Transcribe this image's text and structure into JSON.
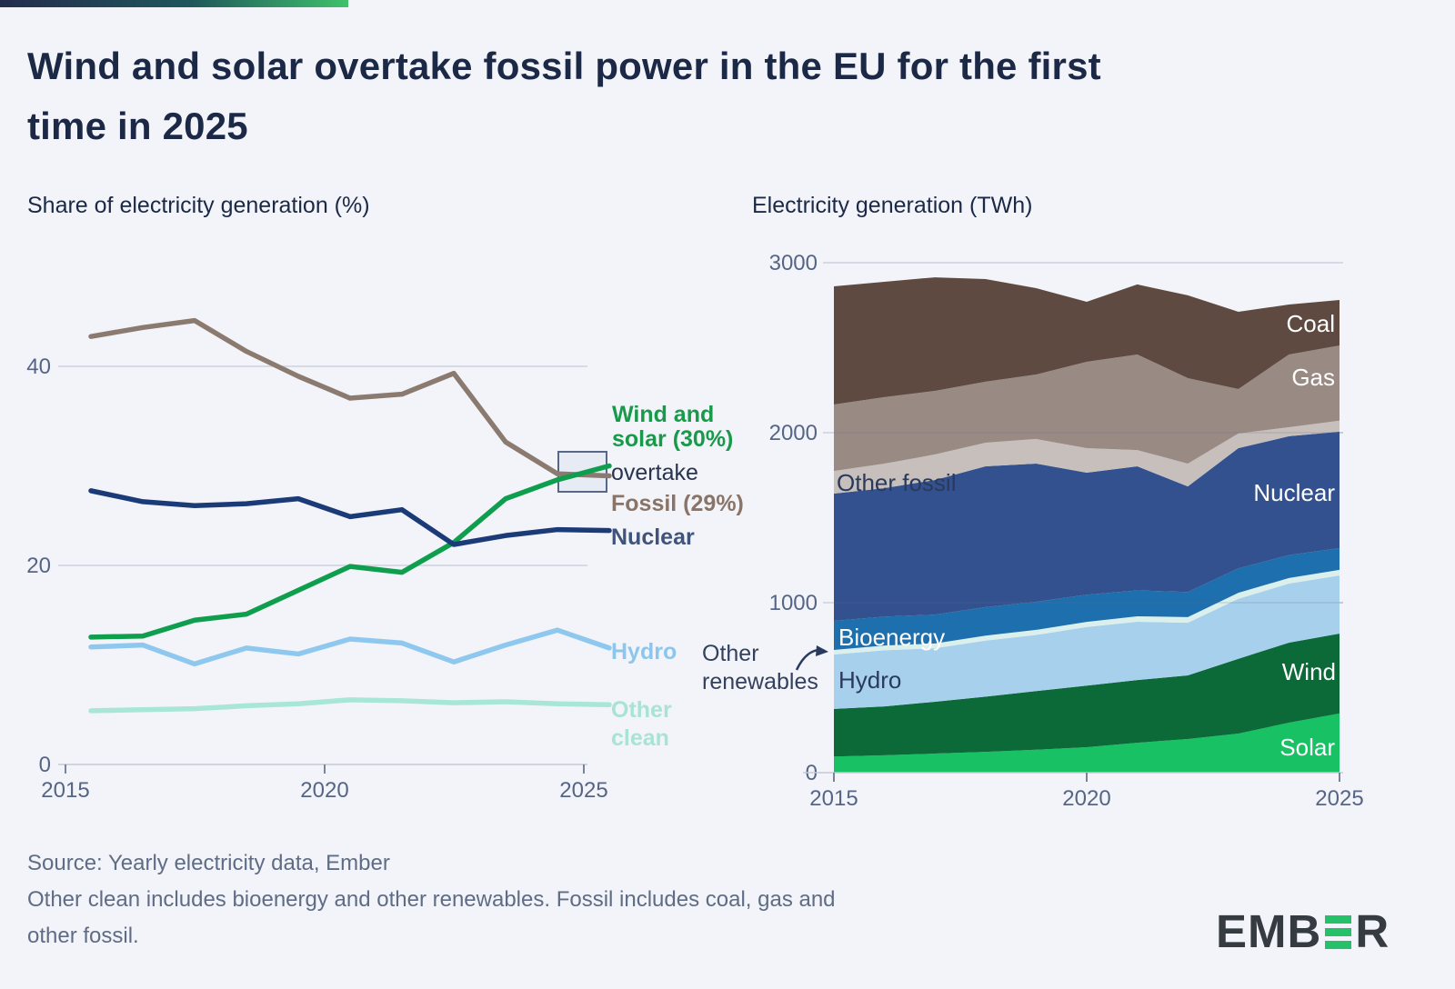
{
  "header": {
    "title_line1": "Wind and solar overtake fossil power in the EU for the first",
    "title_line2": "time in 2025"
  },
  "footer": {
    "source_line": "Source: Yearly electricity data, Ember",
    "note_line1": "Other clean includes bioenergy and other renewables. Fossil includes coal, gas and",
    "note_line2": "other fossil."
  },
  "logo": {
    "part1": "EMB",
    "part2": "R",
    "green_e_icon": "three-bars-E"
  },
  "annotations": {
    "wind_solar_line1": "Wind and",
    "wind_solar_line2": "solar (30%)",
    "overtake": "overtake",
    "fossil": "Fossil (29%)",
    "nuclear": "Nuclear",
    "hydro": "Hydro",
    "other_clean_line1": "Other",
    "other_clean_line2": "clean",
    "other_renewables_line1": "Other",
    "other_renewables_line2": "renewables"
  },
  "area_labels": {
    "coal": "Coal",
    "gas": "Gas",
    "nuclear": "Nuclear",
    "wind": "Wind",
    "solar": "Solar",
    "other_fossil": "Other fossil",
    "bioenergy": "Bioenergy",
    "hydro": "Hydro"
  },
  "colors": {
    "background": "#f2f4f9",
    "title": "#1c2946",
    "grid": "#ccd2dd",
    "axis_text": "#566585",
    "fossil_line": "#8b7a70",
    "wind_solar_line": "#0f9e4d",
    "nuclear_line": "#1b3a78",
    "hydro_line": "#8fc8ee",
    "other_clean_line": "#a8e6d8",
    "coal_area": "#5e4a40",
    "gas_area": "#998a84",
    "other_fossil_area": "#c6bfbb",
    "nuclear_area": "#34518f",
    "bioenergy_area": "#1e6fad",
    "other_renewables_area": "#dbf0ec",
    "hydro_area": "#a7d0ec",
    "wind_area": "#0c6a38",
    "solar_area": "#17c164",
    "box_fill": "#e7ebf3",
    "box_border": "#56678a",
    "logo_dark": "#363b42",
    "logo_green": "#25c16a",
    "annotation_green": "#189a4a",
    "annotation_brown": "#8a7468",
    "annotation_navy": "#40537b",
    "annotation_hydro": "#8cc6ec",
    "annotation_mint": "#a9e3d6",
    "annotation_dark": "#28344f"
  },
  "chart_data": [
    {
      "type": "line",
      "title": "Share of electricity generation (%)",
      "x": [
        2015,
        2016,
        2017,
        2018,
        2019,
        2020,
        2021,
        2022,
        2023,
        2024,
        2025
      ],
      "x_tick_labels": [
        "2015",
        "2020",
        "2025"
      ],
      "y_ticks": [
        0,
        20,
        40
      ],
      "ylim": [
        0,
        47
      ],
      "grid": "horizontal",
      "legend_position": "right-annotations",
      "series": [
        {
          "name": "Fossil",
          "color_key": "fossil_line",
          "values": [
            43.0,
            43.9,
            44.6,
            41.5,
            39.0,
            36.8,
            37.2,
            39.3,
            32.4,
            29.2,
            29.0
          ]
        },
        {
          "name": "Wind and solar",
          "color_key": "wind_solar_line",
          "values": [
            12.8,
            12.9,
            14.5,
            15.1,
            17.5,
            19.9,
            19.3,
            22.3,
            26.7,
            28.6,
            30.0
          ]
        },
        {
          "name": "Nuclear",
          "color_key": "nuclear_line",
          "values": [
            27.5,
            26.4,
            26.0,
            26.2,
            26.7,
            24.9,
            25.6,
            22.1,
            23.0,
            23.6,
            23.5
          ]
        },
        {
          "name": "Hydro",
          "color_key": "hydro_line",
          "values": [
            11.8,
            12.0,
            10.1,
            11.7,
            11.1,
            12.6,
            12.2,
            10.3,
            12.0,
            13.5,
            11.7
          ]
        },
        {
          "name": "Other clean",
          "color_key": "other_clean_line",
          "values": [
            5.4,
            5.5,
            5.6,
            5.9,
            6.1,
            6.5,
            6.4,
            6.2,
            6.3,
            6.1,
            6.0
          ]
        }
      ]
    },
    {
      "type": "area",
      "title": "Electricity generation (TWh)",
      "x": [
        2015,
        2016,
        2017,
        2018,
        2019,
        2020,
        2021,
        2022,
        2023,
        2024,
        2025
      ],
      "x_tick_labels": [
        "2015",
        "2020",
        "2025"
      ],
      "y_ticks": [
        0,
        1000,
        2000,
        3000
      ],
      "ylim": [
        0,
        3000
      ],
      "stack_order": "bottom_to_top",
      "series": [
        {
          "name": "Solar",
          "color_key": "solar_area",
          "values": [
            95,
            102,
            112,
            122,
            135,
            150,
            176,
            198,
            230,
            294,
            348
          ]
        },
        {
          "name": "Wind",
          "color_key": "wind_area",
          "values": [
            280,
            288,
            305,
            325,
            345,
            362,
            369,
            374,
            440,
            471,
            470
          ]
        },
        {
          "name": "Hydro",
          "color_key": "hydro_area",
          "values": [
            320,
            330,
            315,
            330,
            330,
            345,
            343,
            310,
            353,
            347,
            342
          ]
        },
        {
          "name": "Other renewables",
          "color_key": "other_renewables_area",
          "values": [
            27,
            28,
            28,
            29,
            30,
            30,
            32,
            33,
            35,
            33,
            33
          ]
        },
        {
          "name": "Bioenergy",
          "color_key": "bioenergy_area",
          "values": [
            171,
            170,
            170,
            168,
            165,
            160,
            152,
            148,
            144,
            135,
            128
          ]
        },
        {
          "name": "Nuclear",
          "color_key": "nuclear_area",
          "values": [
            749,
            756,
            792,
            828,
            813,
            718,
            730,
            621,
            707,
            699,
            685
          ]
        },
        {
          "name": "Other fossil",
          "color_key": "other_fossil_area",
          "values": [
            133,
            144,
            150,
            139,
            145,
            144,
            96,
            134,
            86,
            53,
            65
          ]
        },
        {
          "name": "Gas",
          "color_key": "gas_area",
          "values": [
            391,
            391,
            374,
            359,
            379,
            508,
            562,
            503,
            262,
            428,
            442
          ]
        },
        {
          "name": "Coal",
          "color_key": "coal_area",
          "values": [
            695,
            679,
            668,
            604,
            508,
            353,
            412,
            487,
            454,
            294,
            268
          ]
        }
      ]
    }
  ]
}
